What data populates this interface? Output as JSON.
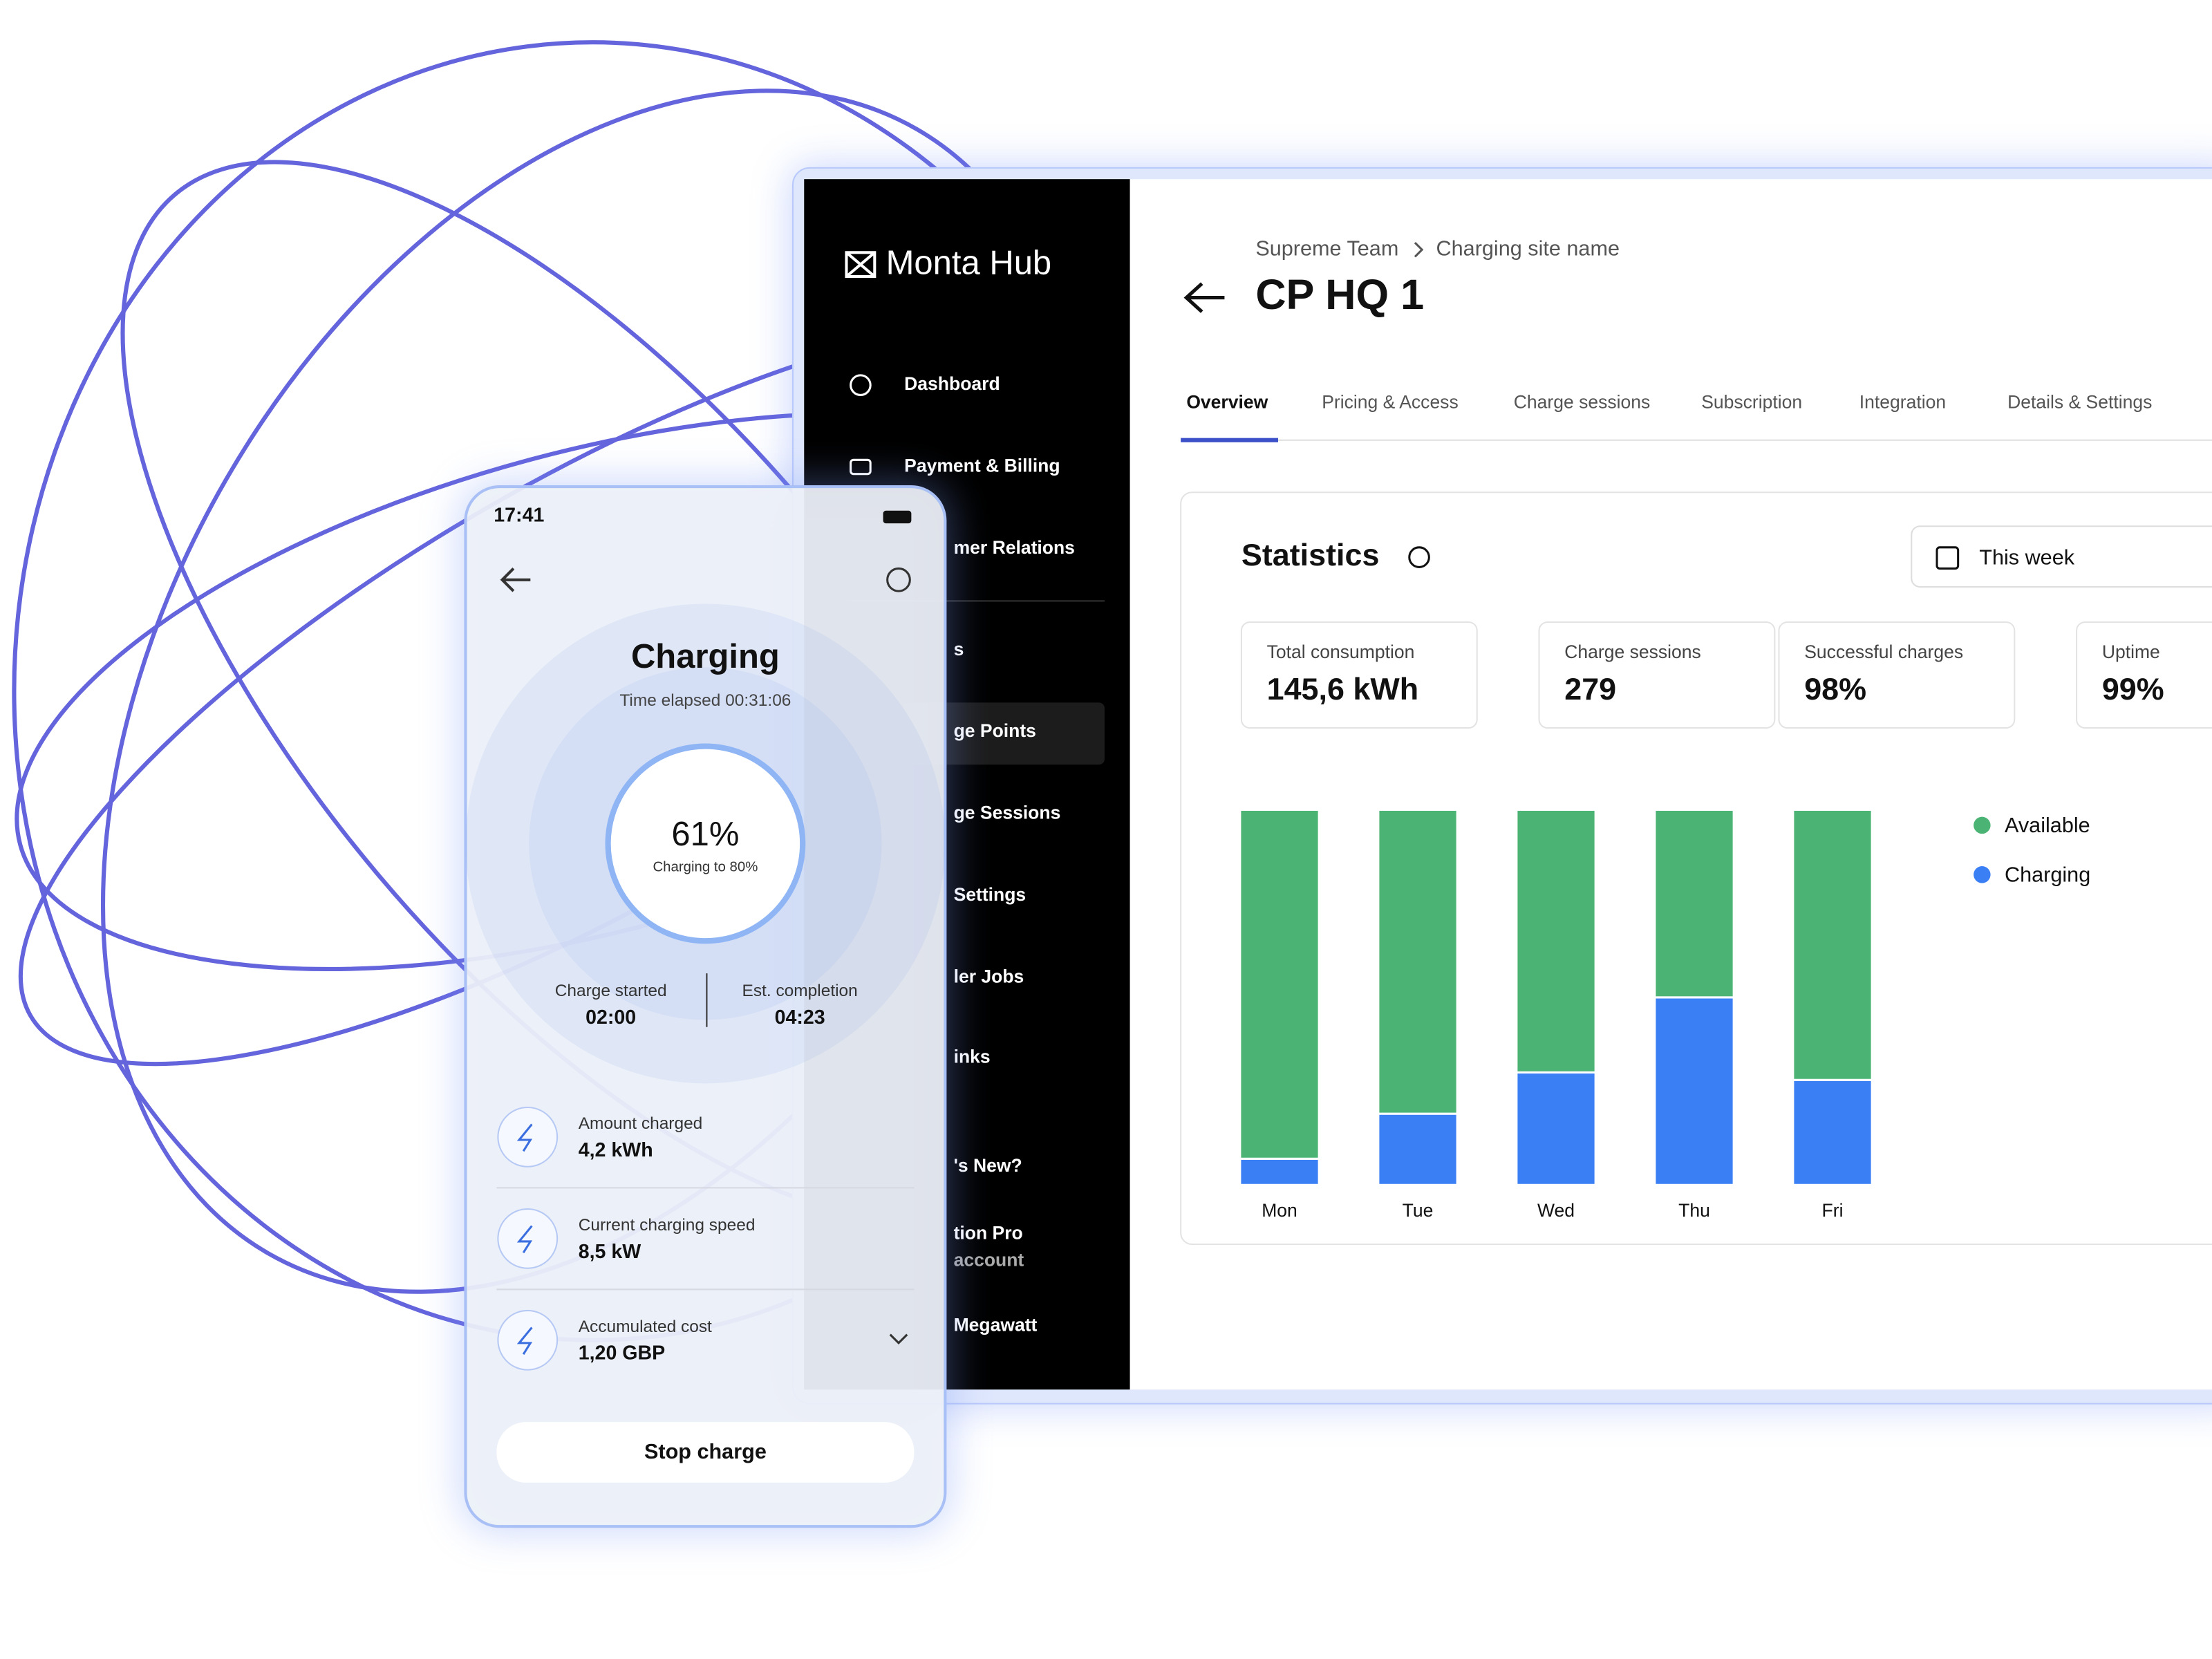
{
  "sidebar": {
    "brand": "Monta Hub",
    "items": [
      "Dashboard",
      "Payment & Billing",
      "mer Relations",
      "s",
      "ge Points",
      "ge Sessions",
      "Settings",
      "ler Jobs",
      "inks",
      "'s New?",
      "tion Pro",
      "account",
      "Megawatt"
    ]
  },
  "phone": {
    "time": "17:41",
    "title": "Charging",
    "elapsed": "Time elapsed 00:31:06",
    "percent": "61%",
    "target": "Charging to 80%",
    "started_label": "Charge started",
    "started_value": "02:00",
    "completion_label": "Est. completion",
    "completion_value": "04:23",
    "rows": [
      {
        "label": "Amount charged",
        "value": "4,2 kWh"
      },
      {
        "label": "Current charging speed",
        "value": "8,5 kW"
      },
      {
        "label": "Accumulated cost",
        "value": "1,20 GBP"
      }
    ],
    "button": "Stop charge"
  },
  "header": {
    "breadcrumb": [
      "Supreme Team",
      "Charging site name"
    ],
    "title": "CP HQ 1"
  },
  "tabs": [
    "Overview",
    "Pricing & Access",
    "Charge sessions",
    "Subscription",
    "Integration",
    "Details & Settings"
  ],
  "statistics": {
    "title": "Statistics",
    "period": "This week",
    "cards": [
      {
        "label": "Total consumption",
        "value": "145,6 kWh"
      },
      {
        "label": "Charge sessions",
        "value": "279"
      },
      {
        "label": "Successful charges",
        "value": "98%"
      },
      {
        "label": "Uptime",
        "value": "99%"
      }
    ]
  },
  "chart_data": {
    "type": "bar",
    "stacked": true,
    "categories": [
      "Mon",
      "Tue",
      "Wed",
      "Thu",
      "Fri"
    ],
    "series": [
      {
        "name": "Available",
        "color": "#4bb374",
        "values": [
          93,
          81,
          70,
          50,
          72
        ]
      },
      {
        "name": "Charging",
        "color": "#3b7ff5",
        "values": [
          7,
          19,
          30,
          50,
          28
        ]
      }
    ],
    "legend": "right"
  }
}
